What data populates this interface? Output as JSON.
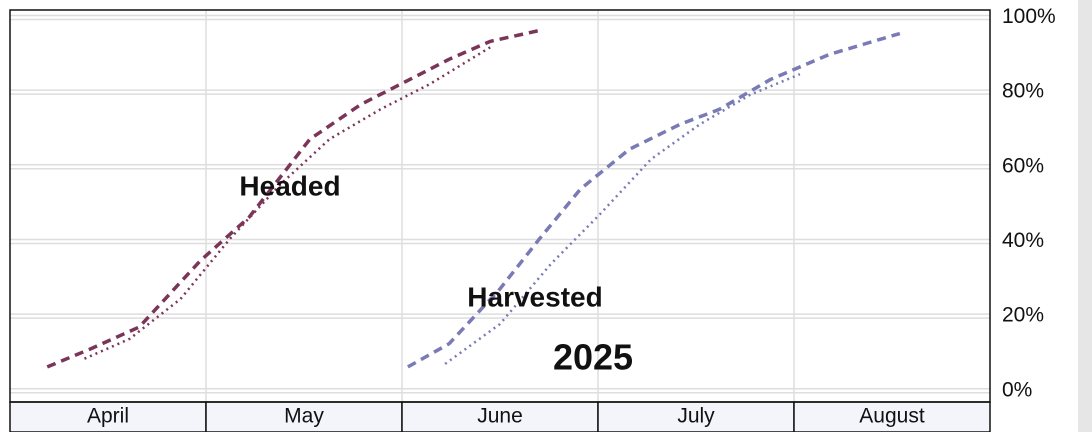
{
  "chart_data": {
    "type": "line",
    "categories": [
      "April",
      "May",
      "June",
      "July",
      "August"
    ],
    "xlim": [
      0,
      5
    ],
    "ylim": [
      -3,
      102
    ],
    "yticks": [
      {
        "value": 0,
        "label": "0%"
      },
      {
        "value": 20,
        "label": "20%"
      },
      {
        "value": 40,
        "label": "40%"
      },
      {
        "value": 60,
        "label": "60%"
      },
      {
        "value": 80,
        "label": "80%"
      },
      {
        "value": 100,
        "label": "100%"
      }
    ],
    "grid": true,
    "annotations": [
      {
        "text": "Headed",
        "color": "#7b3558"
      },
      {
        "text": "Harvested",
        "color": "#7a7ab5"
      },
      {
        "text": "2025",
        "color": "#0000e6"
      }
    ],
    "series": [
      {
        "color": "#7b3558",
        "style": "dashed",
        "x": [
          0.19,
          0.41,
          0.66,
          0.97,
          1.22,
          1.53,
          1.79,
          2.04,
          2.24,
          2.45,
          2.7
        ],
        "values": [
          6.4,
          11.2,
          17.1,
          34.8,
          46.5,
          67.4,
          76.7,
          83.4,
          88.8,
          93.6,
          96.5
        ]
      },
      {
        "color": "#7b3558",
        "style": "dotted",
        "x": [
          0.38,
          0.61,
          0.87,
          1.12,
          1.38,
          1.63,
          1.89,
          2.14,
          2.45
        ],
        "values": [
          8.6,
          13.9,
          24.6,
          40.6,
          55.3,
          67.4,
          75.4,
          82.1,
          92.0
        ]
      },
      {
        "color": "#7a7ab5",
        "style": "dashed",
        "x": [
          2.03,
          2.24,
          2.5,
          2.7,
          2.91,
          3.16,
          3.42,
          3.62,
          3.88,
          4.18,
          4.54
        ],
        "values": [
          6.4,
          12.6,
          27.3,
          40.6,
          54.0,
          64.7,
          71.4,
          75.4,
          83.4,
          90.1,
          95.7
        ]
      },
      {
        "color": "#7a7ab5",
        "style": "dotted",
        "x": [
          2.22,
          2.5,
          2.76,
          3.01,
          3.27,
          3.52,
          3.78,
          4.03
        ],
        "values": [
          7.2,
          17.9,
          34.0,
          47.3,
          62.0,
          71.4,
          79.4,
          84.8
        ]
      }
    ]
  }
}
